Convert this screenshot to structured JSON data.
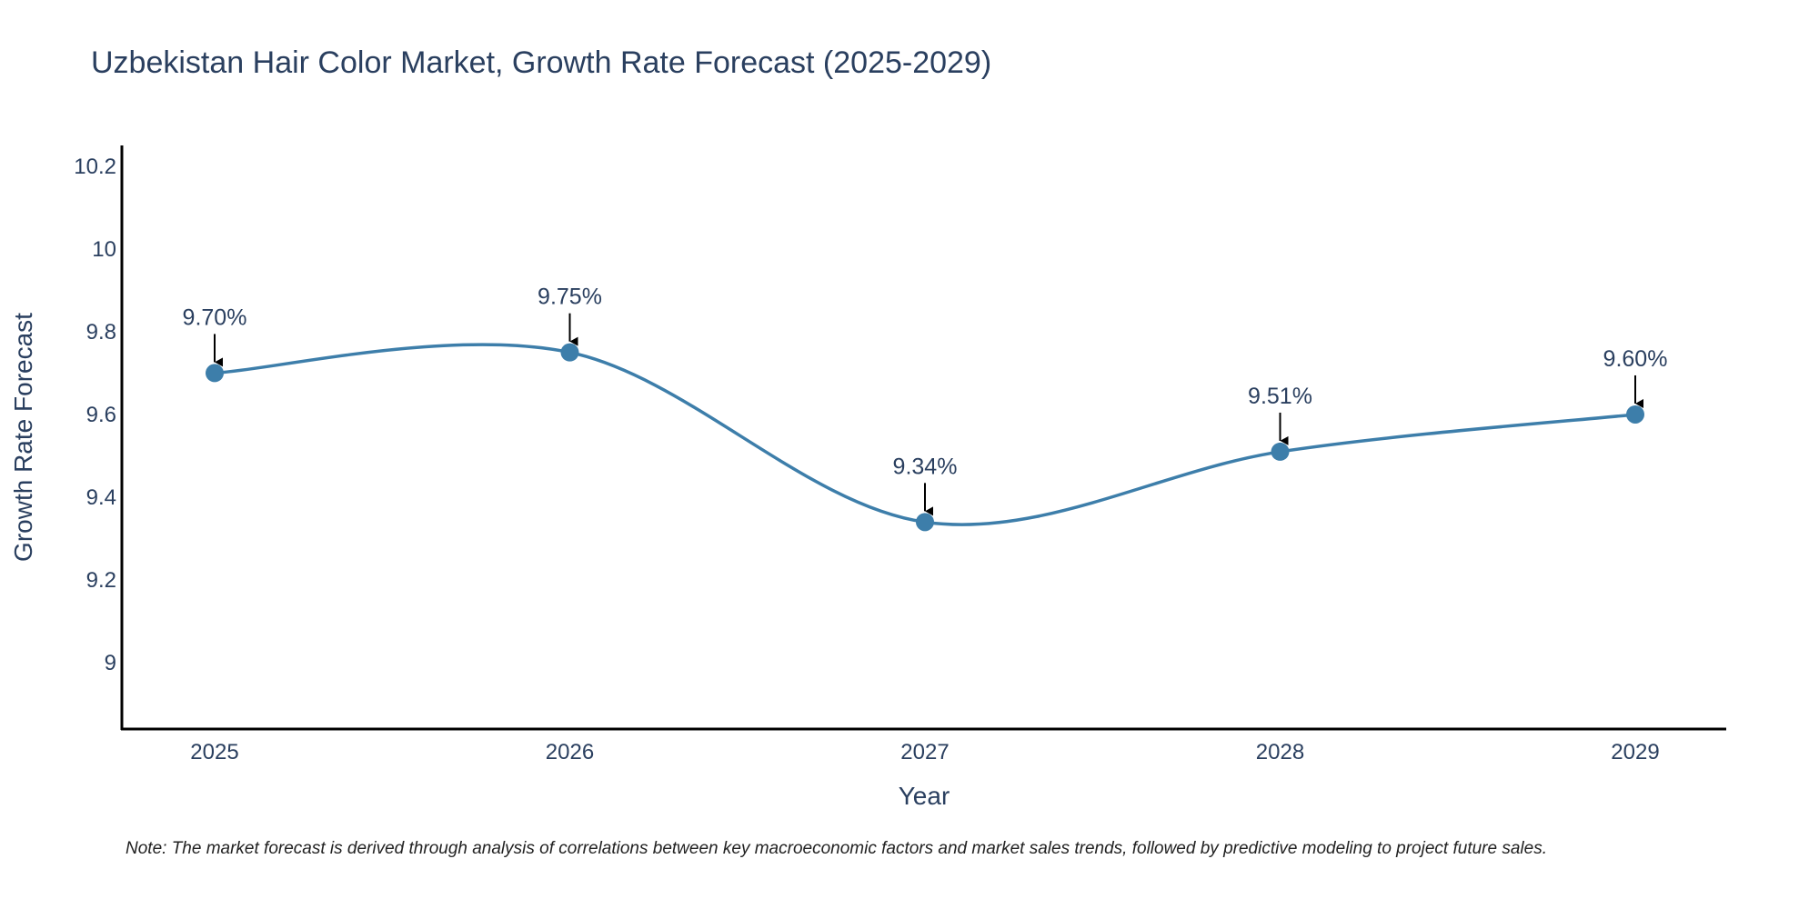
{
  "chart_data": {
    "type": "line",
    "title": "Uzbekistan Hair Color Market, Growth Rate Forecast (2025-2029)",
    "xlabel": "Year",
    "ylabel": "Growth Rate Forecast",
    "categories": [
      "2025",
      "2026",
      "2027",
      "2028",
      "2029"
    ],
    "values": [
      9.7,
      9.75,
      9.34,
      9.51,
      9.6
    ],
    "data_labels": [
      "9.70%",
      "9.75%",
      "9.34%",
      "9.51%",
      "9.60%"
    ],
    "yticks": [
      9,
      9.2,
      9.4,
      9.6,
      9.8,
      10,
      10.2
    ],
    "ytick_labels": [
      "9",
      "9.2",
      "9.4",
      "9.6",
      "9.8",
      "10",
      "10.2"
    ],
    "ylim": [
      8.84,
      10.25
    ],
    "grid": false,
    "line_shape": "spline",
    "note": "Note: The market forecast is derived through analysis of correlations between key macroeconomic factors and market sales trends, followed by predictive modeling to project future sales."
  },
  "colors": {
    "line": "#3d7eaa",
    "marker": "#3d7eaa",
    "text": "#2a3f5f",
    "axis": "#000000",
    "arrow": "#000000"
  }
}
